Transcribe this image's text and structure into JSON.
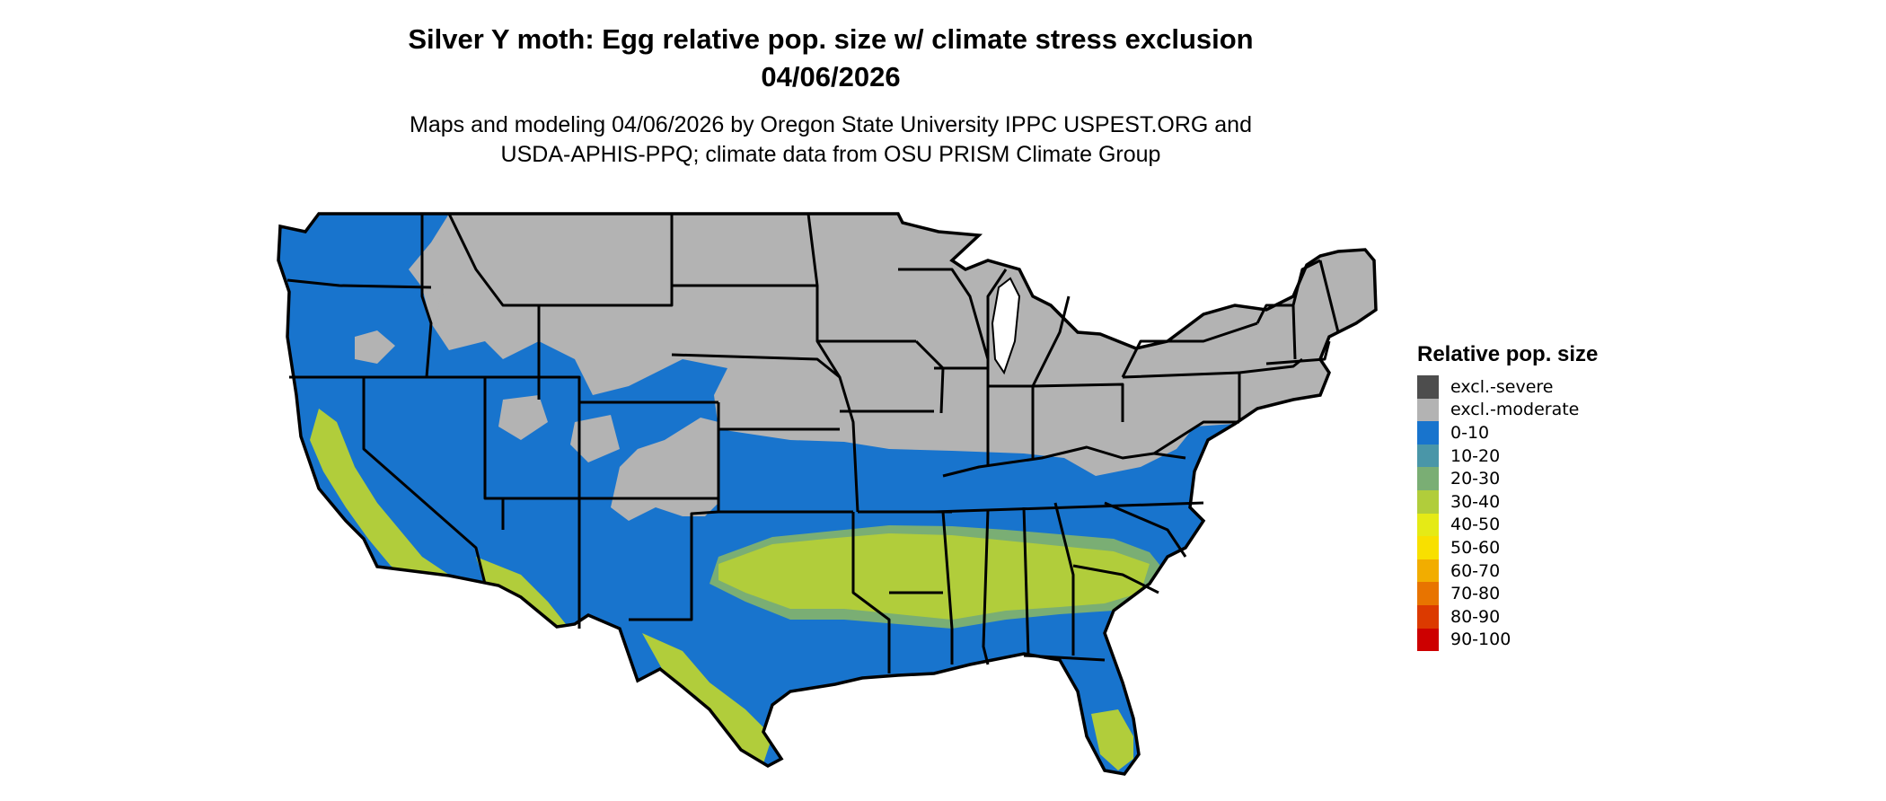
{
  "title": {
    "line1": "Silver Y moth: Egg relative pop. size w/ climate stress exclusion",
    "line2": "04/06/2026"
  },
  "subtitle": {
    "line1": "Maps and modeling 04/06/2026 by Oregon State University IPPC USPEST.ORG and",
    "line2": "USDA-APHIS-PPQ; climate data from OSU PRISM Climate Group"
  },
  "legend": {
    "title": "Relative pop. size",
    "items": [
      {
        "label": "excl.-severe",
        "color": "#4d4d4d"
      },
      {
        "label": "excl.-moderate",
        "color": "#b3b3b3"
      },
      {
        "label": "0-10",
        "color": "#1874cd"
      },
      {
        "label": "10-20",
        "color": "#4a96a8"
      },
      {
        "label": "20-30",
        "color": "#7aae74"
      },
      {
        "label": "30-40",
        "color": "#b1cd3b"
      },
      {
        "label": "40-50",
        "color": "#e5ea16"
      },
      {
        "label": "50-60",
        "color": "#f8e000"
      },
      {
        "label": "60-70",
        "color": "#f2ad00"
      },
      {
        "label": "70-80",
        "color": "#e87400"
      },
      {
        "label": "80-90",
        "color": "#dc3a00"
      },
      {
        "label": "90-100",
        "color": "#cd0000"
      }
    ]
  },
  "map": {
    "colors": {
      "excluded": "#b3b3b3",
      "low": "#1874cd",
      "mid": "#b1cd3b",
      "transition": "#7aae74",
      "border": "#000000"
    }
  }
}
